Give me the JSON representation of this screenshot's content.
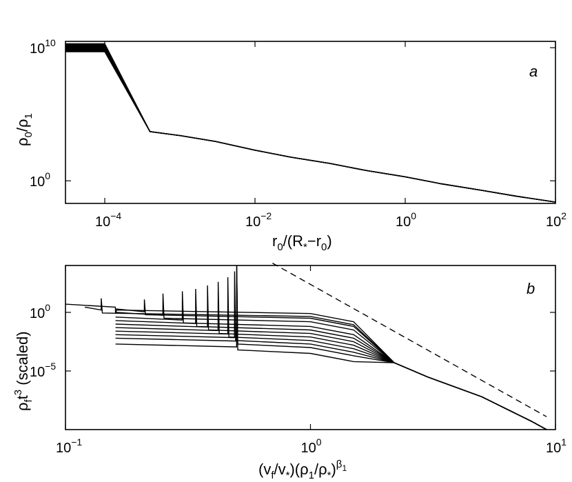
{
  "chart_data": [
    {
      "id": "a",
      "type": "line",
      "scale": "log-log",
      "panel_label": "a",
      "xlim": [
        3e-05,
        100
      ],
      "ylim": [
        0.02,
        30000000000.0
      ],
      "xticks": [
        {
          "v": 0.0001,
          "base": "10",
          "exp": "−4"
        },
        {
          "v": 0.01,
          "base": "10",
          "exp": "−2"
        },
        {
          "v": 1,
          "base": "10",
          "exp": "0"
        },
        {
          "v": 100,
          "base": "10",
          "exp": "2"
        }
      ],
      "yticks": [
        {
          "v": 1,
          "base": "10",
          "exp": "0"
        },
        {
          "v": 10000000000.0,
          "base": "10",
          "exp": "10"
        }
      ],
      "xlabel": {
        "p1": "r",
        "s1": "0",
        "p2": "/(R",
        "s2": "*",
        "p3": "−r",
        "s3": "0",
        "p4": ")"
      },
      "ylabel": {
        "p1": "ρ",
        "s1": "0",
        "p2": "/ρ",
        "s2": "1"
      },
      "n_curves": 14,
      "series_template": {
        "x": [
          3e-05,
          0.0001,
          0.0004,
          0.001,
          0.003,
          0.01,
          0.03,
          0.1,
          0.3,
          1,
          3,
          10,
          30,
          100
        ],
        "y": [
          10000000000.0,
          10000000000.0,
          5000,
          2500,
          900,
          200,
          60,
          20,
          6,
          2,
          0.6,
          0.2,
          0.07,
          0.025
        ]
      },
      "spread_start_logy": [
        9.7,
        10.3
      ]
    },
    {
      "id": "b",
      "type": "line",
      "scale": "log-log",
      "panel_label": "b",
      "xlim": [
        0.1,
        10
      ],
      "ylim": [
        1e-10,
        10000.0
      ],
      "xticks": [
        {
          "v": 0.1,
          "base": "10",
          "exp": "−1"
        },
        {
          "v": 1,
          "base": "10",
          "exp": "0"
        },
        {
          "v": 10,
          "base": "10",
          "exp": "1"
        }
      ],
      "yticks": [
        {
          "v": 1,
          "base": "10",
          "exp": "0"
        },
        {
          "v": 1e-05,
          "base": "10",
          "exp": "−5"
        }
      ],
      "xlabel": {
        "p1": "(v",
        "s1": "f",
        "p2": "/v",
        "s2": "*",
        "p3": ")(ρ",
        "s3": "1",
        "p4": "/ρ",
        "s4": "*",
        "p5": ")",
        "sup1": "β",
        "sup1sub": "1"
      },
      "ylabel": {
        "p1": "ρ",
        "s1": "f",
        "p2": "t",
        "sup": "3",
        "p3": " (scaled)"
      },
      "dashed_reference": {
        "x": [
          0.7,
          9.2
        ],
        "logy": [
          4.2,
          -8.9
        ]
      },
      "series": [
        {
          "x0": 0.1,
          "xs": 0.16,
          "logy_flat": 0.4,
          "logy_spike": -0.1
        },
        {
          "x0": 0.12,
          "xs": 0.14,
          "logy_flat": 0.15,
          "logy_spike": 1.2
        },
        {
          "x0": 0.16,
          "xs": 0.21,
          "logy_flat": 0.0,
          "logy_spike": 1.1
        },
        {
          "x0": 0.16,
          "xs": 0.25,
          "logy_flat": -0.3,
          "logy_spike": 1.6
        },
        {
          "x0": 0.16,
          "xs": 0.3,
          "logy_flat": -0.7,
          "logy_spike": 1.8
        },
        {
          "x0": 0.16,
          "xs": 0.34,
          "logy_flat": -1.0,
          "logy_spike": 2.0
        },
        {
          "x0": 0.16,
          "xs": 0.38,
          "logy_flat": -1.3,
          "logy_spike": 2.3
        },
        {
          "x0": 0.16,
          "xs": 0.42,
          "logy_flat": -1.6,
          "logy_spike": 2.6
        },
        {
          "x0": 0.16,
          "xs": 0.46,
          "logy_flat": -1.9,
          "logy_spike": 3.0
        },
        {
          "x0": 0.16,
          "xs": 0.49,
          "logy_flat": -2.2,
          "logy_spike": 3.5
        },
        {
          "x0": 0.16,
          "xs": 0.5,
          "logy_flat": -2.5,
          "logy_spike": 4.0
        },
        {
          "x0": 0.16,
          "xs": 0.5,
          "logy_flat": -3.0,
          "logy_spike": 4.0
        }
      ],
      "tail": {
        "x": [
          2.2,
          3,
          5,
          8,
          9.2
        ],
        "logy": [
          -4.3,
          -5.5,
          -7.2,
          -9.3,
          -10
        ]
      }
    }
  ]
}
